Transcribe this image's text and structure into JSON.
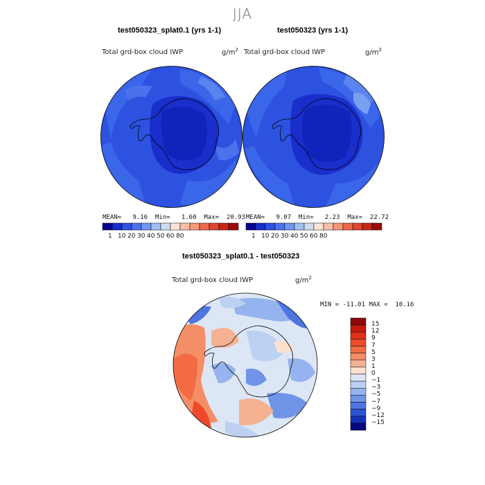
{
  "page": {
    "season": "JJA",
    "diff_title": "test050323_splat0.1 - test050323"
  },
  "panels": [
    {
      "title": "test050323_splat0.1 (yrs 1-1)",
      "variable": "Total grd-box cloud IWP",
      "units": "g/m",
      "units_exp": "2",
      "stats": {
        "mean_label": "MEAN=",
        "mean": "9.16",
        "min_label": "Min=",
        "min": "1.60",
        "max_label": "Max=",
        "max": "20.93"
      }
    },
    {
      "title": "test050323 (yrs 1-1)",
      "variable": "Total grd-box cloud IWP",
      "units": "g/m",
      "units_exp": "2",
      "stats": {
        "mean_label": "MEAN=",
        "mean": "9.07",
        "min_label": "Min=",
        "min": "2.23",
        "max_label": "Max=",
        "max": "22.72"
      }
    }
  ],
  "diff_panel": {
    "variable": "Total grd-box cloud IWP",
    "units": "g/m",
    "units_exp": "2",
    "minmax": "MIN = -11.01 MAX =  10.16"
  },
  "chart_data": [
    {
      "type": "heatmap",
      "title": "test050323_splat0.1 (yrs 1-1)",
      "variable": "Total grd-box cloud IWP",
      "units": "g/m^2",
      "mean": 9.16,
      "min": 1.6,
      "max": 20.93,
      "colorbar_ticks": [
        "1",
        "10",
        "20",
        "30",
        "40",
        "50",
        "60",
        "80"
      ],
      "colorbar_colors": [
        "#08088c",
        "#1a2ecc",
        "#2d52e0",
        "#4a72ec",
        "#6f96f2",
        "#a3beef",
        "#cddcf2",
        "#fbe4d6",
        "#f7bfa6",
        "#f39879",
        "#ee6a4a",
        "#e0442c",
        "#c62718",
        "#9e0a0a"
      ]
    },
    {
      "type": "heatmap",
      "title": "test050323 (yrs 1-1)",
      "variable": "Total grd-box cloud IWP",
      "units": "g/m^2",
      "mean": 9.07,
      "min": 2.23,
      "max": 22.72,
      "colorbar_ticks": [
        "1",
        "10",
        "20",
        "30",
        "40",
        "50",
        "60",
        "80"
      ],
      "colorbar_colors": [
        "#08088c",
        "#1a2ecc",
        "#2d52e0",
        "#4a72ec",
        "#6f96f2",
        "#a3beef",
        "#cddcf2",
        "#fbe4d6",
        "#f7bfa6",
        "#f39879",
        "#ee6a4a",
        "#e0442c",
        "#c62718",
        "#9e0a0a"
      ]
    },
    {
      "type": "heatmap",
      "title": "test050323_splat0.1 - test050323",
      "variable": "Total grd-box cloud IWP",
      "units": "g/m^2",
      "min": -11.01,
      "max": 10.16,
      "colorbar_ticks": [
        "15",
        "12",
        "9",
        "7",
        "5",
        "3",
        "1",
        "0",
        "-1",
        "-3",
        "-5",
        "-7",
        "-9",
        "-12",
        "-15"
      ],
      "colorbar_colors": [
        "#8b0a0a",
        "#c41a10",
        "#e0321c",
        "#ee4a2a",
        "#f26b44",
        "#f48e66",
        "#f5b293",
        "#fbe1cf",
        "#dce6f5",
        "#bcd0f2",
        "#95b3ee",
        "#7095e8",
        "#4e75e0",
        "#2d52d6",
        "#1530b8",
        "#07077e"
      ]
    }
  ]
}
